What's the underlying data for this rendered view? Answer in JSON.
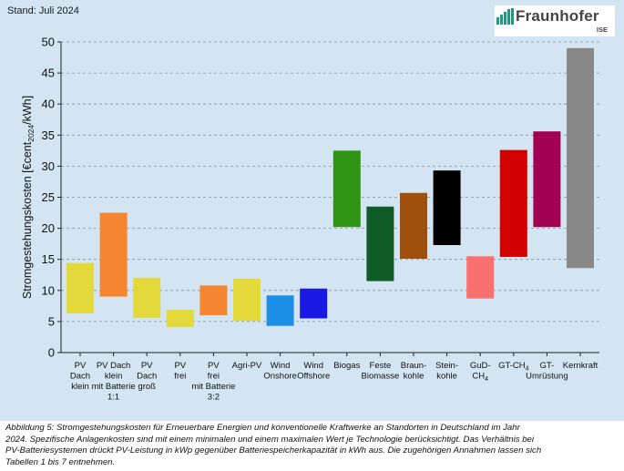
{
  "stand": "Stand: Juli 2024",
  "logo": {
    "name": "Fraunhofer",
    "sub": "ISE"
  },
  "chart_data": {
    "type": "bar",
    "subtype": "floating-range",
    "ylabel": "Stromgestehungskosten [€cent2024/kWh]",
    "ylim": [
      0,
      50
    ],
    "yticks": [
      0,
      5,
      10,
      15,
      20,
      25,
      30,
      35,
      40,
      45,
      50
    ],
    "grid": true,
    "categories": [
      {
        "label": [
          "PV",
          "Dach",
          "klein"
        ],
        "low": 6.3,
        "high": 14.4,
        "color": "#e3d93b"
      },
      {
        "label": [
          "PV Dach",
          "klein",
          "mit Batterie",
          "1:1"
        ],
        "low": 9.0,
        "high": 22.5,
        "color": "#f5862f"
      },
      {
        "label": [
          "PV",
          "Dach",
          "groß"
        ],
        "low": 5.6,
        "high": 12.0,
        "color": "#e3d93b"
      },
      {
        "label": [
          "PV",
          "frei"
        ],
        "low": 4.1,
        "high": 6.9,
        "color": "#e3d93b"
      },
      {
        "label": [
          "PV",
          "frei",
          "mit Batterie",
          "3:2"
        ],
        "low": 6.0,
        "high": 10.8,
        "color": "#f5862f"
      },
      {
        "label": [
          "Agri-PV"
        ],
        "low": 5.1,
        "high": 11.9,
        "color": "#e3d93b"
      },
      {
        "label": [
          "Wind",
          "Onshore"
        ],
        "low": 4.3,
        "high": 9.2,
        "color": "#1e8fe6"
      },
      {
        "label": [
          "Wind",
          "Offshore"
        ],
        "low": 5.5,
        "high": 10.3,
        "color": "#1a1ae6"
      },
      {
        "label": [
          "Biogas"
        ],
        "low": 20.2,
        "high": 32.5,
        "color": "#2f9413"
      },
      {
        "label": [
          "Feste",
          "Biomasse"
        ],
        "low": 11.5,
        "high": 23.5,
        "color": "#0f5c27"
      },
      {
        "label": [
          "Braun-",
          "kohle"
        ],
        "low": 15.1,
        "high": 25.7,
        "color": "#a0500d"
      },
      {
        "label": [
          "Stein-",
          "kohle"
        ],
        "low": 17.3,
        "high": 29.3,
        "color": "#000000"
      },
      {
        "label": [
          "GuD-",
          "CH4"
        ],
        "low": 8.7,
        "high": 15.5,
        "color": "#f97070"
      },
      {
        "label": [
          "GT-CH4"
        ],
        "low": 15.4,
        "high": 32.6,
        "color": "#d30000"
      },
      {
        "label": [
          "GT-",
          "Umrüstung"
        ],
        "low": 20.2,
        "high": 35.6,
        "color": "#a20052"
      },
      {
        "label": [
          "Kernkraft"
        ],
        "low": 13.6,
        "high": 49.0,
        "color": "#888888"
      }
    ]
  },
  "caption": {
    "line1": "Abbildung 5: Stromgestehungskosten für Erneuerbare Energien und konventionelle Kraftwerke an Standorten in Deutschland im Jahr",
    "line2": "2024. Spezifische Anlagenkosten sind mit einem minimalen und einem maximalen Wert je Technologie berücksichtigt. Das Verhältnis bei",
    "line3": "PV-Batteriesystemen drückt PV-Leistung in kWp gegenüber Batteriespeicherkapazität in kWh aus. Die zugehörigen Annahmen lassen sich",
    "line4": "Tabellen 1 bis 7 entnehmen."
  }
}
